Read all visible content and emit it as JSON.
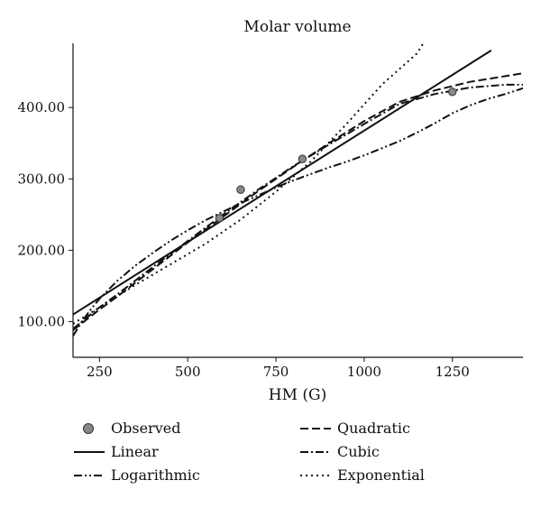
{
  "chart_data": {
    "type": "scatter",
    "title": "Molar volume",
    "xlabel": "HM (G)",
    "ylabel": "",
    "xlim": [
      175,
      1450
    ],
    "ylim": [
      50,
      490
    ],
    "x_ticks": [
      250,
      500,
      750,
      1000,
      1250
    ],
    "x_tick_labels": [
      "250",
      "500",
      "750",
      "1000",
      "1250"
    ],
    "y_ticks": [
      100,
      200,
      300,
      400
    ],
    "y_tick_labels": [
      "100.00",
      "200.00",
      "300.00",
      "400.00"
    ],
    "grid": false,
    "legend_position": "bottom",
    "series": [
      {
        "name": "Observed",
        "kind": "points",
        "color": "#888888",
        "x": [
          590,
          650,
          825,
          1250
        ],
        "y": [
          245,
          285,
          328,
          422
        ]
      },
      {
        "name": "Linear",
        "kind": "line",
        "dash": "solid",
        "color": "#111111",
        "x": [
          175,
          1360
        ],
        "y": [
          110,
          480
        ]
      },
      {
        "name": "Logarithmic",
        "kind": "line",
        "dash": "dashdotdot",
        "color": "#111111",
        "x": [
          175,
          200,
          225,
          250,
          300,
          350,
          400,
          450,
          500,
          550,
          600,
          650,
          700,
          750,
          800,
          850,
          900,
          950,
          1000,
          1050,
          1100,
          1150,
          1200,
          1250,
          1300,
          1350,
          1400,
          1450
        ],
        "y": [
          80,
          100,
          117,
          132,
          157,
          178,
          196,
          213,
          228,
          242,
          254,
          266,
          277,
          288,
          298,
          307,
          316,
          324,
          333,
          343,
          353,
          365,
          378,
          392,
          403,
          412,
          419,
          427
        ]
      },
      {
        "name": "Quadratic",
        "kind": "line",
        "dash": "dashed",
        "color": "#111111",
        "x": [
          175,
          250,
          300,
          400,
          500,
          600,
          700,
          800,
          900,
          1000,
          1100,
          1200,
          1300,
          1400,
          1450
        ],
        "y": [
          88,
          117,
          135,
          173,
          211,
          247,
          283,
          317,
          350,
          381,
          408,
          424,
          436,
          444,
          448
        ]
      },
      {
        "name": "Cubic",
        "kind": "line",
        "dash": "dashdot",
        "color": "#111111",
        "x": [
          175,
          250,
          300,
          400,
          500,
          600,
          700,
          800,
          900,
          1000,
          1100,
          1200,
          1300,
          1400,
          1450
        ],
        "y": [
          90,
          120,
          138,
          176,
          213,
          250,
          285,
          318,
          348,
          377,
          405,
          419,
          428,
          432,
          432
        ]
      },
      {
        "name": "Exponential",
        "kind": "line",
        "dash": "dotted",
        "color": "#111111",
        "x": [
          175,
          250,
          350,
          450,
          550,
          650,
          750,
          850,
          950,
          1050,
          1150,
          1170
        ],
        "y": [
          97,
          120,
          151,
          180,
          209,
          243,
          282,
          325,
          377,
          432,
          476,
          492
        ]
      }
    ]
  }
}
